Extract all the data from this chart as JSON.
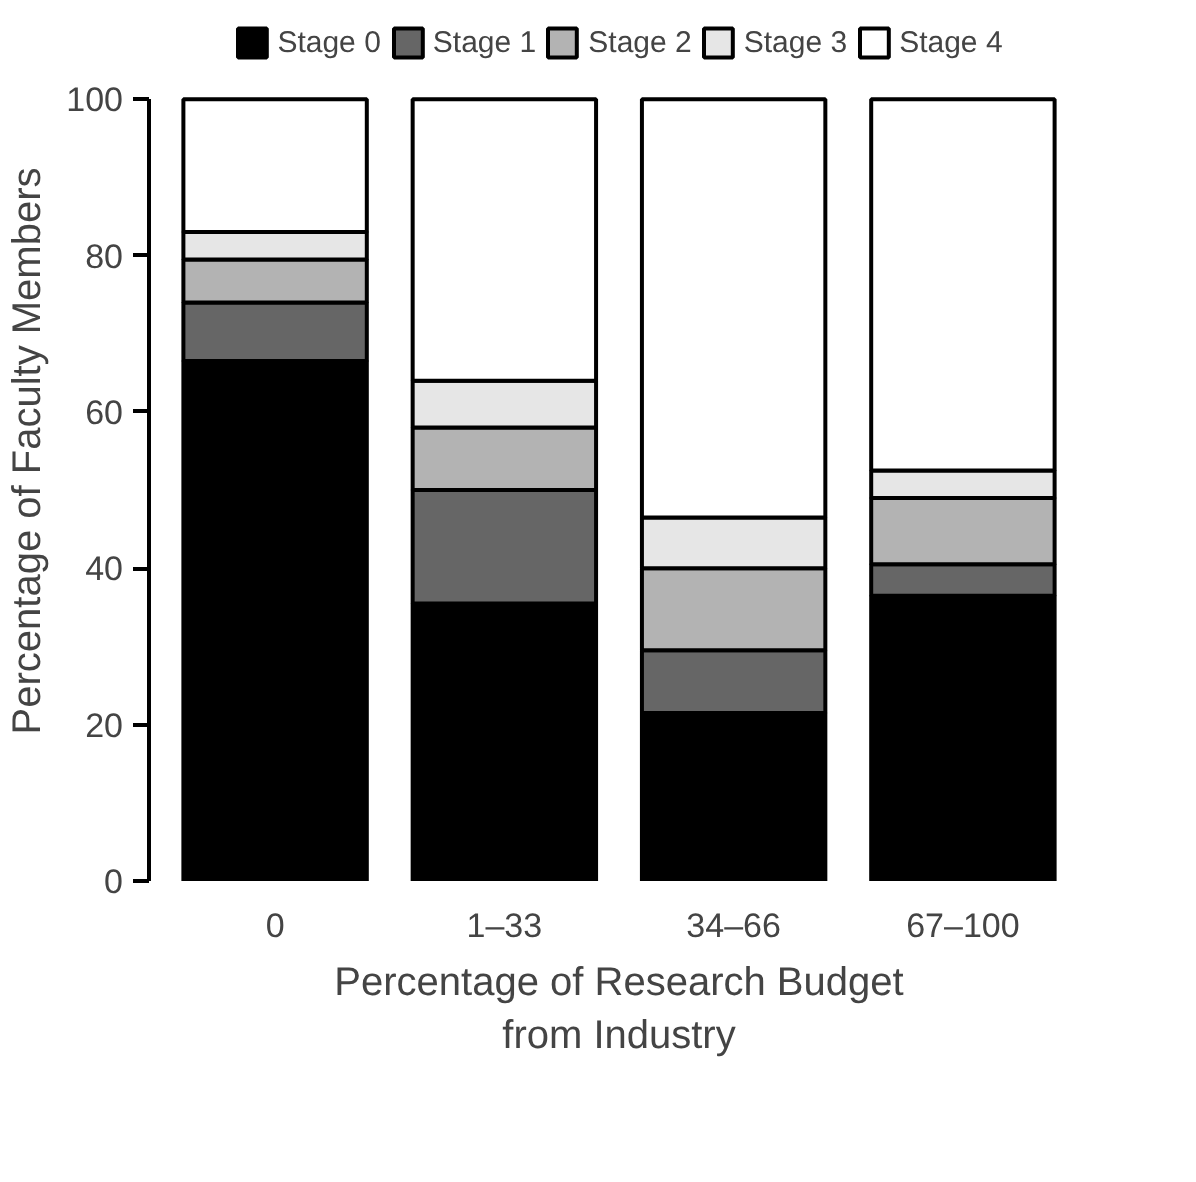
{
  "chart_data": {
    "type": "bar",
    "stacked": true,
    "xlabel": "Percentage of Research Budget\nfrom Industry",
    "ylabel": "Percentage of Faculty Members",
    "categories": [
      "0",
      "1–33",
      "34–66",
      "67–100"
    ],
    "series": [
      {
        "name": "Stage 0",
        "color": "#000000",
        "values": [
          66.5,
          35.5,
          21.5,
          36.5
        ]
      },
      {
        "name": "Stage 1",
        "color": "#666666",
        "values": [
          7.5,
          14.5,
          8,
          4
        ]
      },
      {
        "name": "Stage 2",
        "color": "#b3b3b3",
        "values": [
          5.5,
          8,
          10.5,
          8.5
        ]
      },
      {
        "name": "Stage 3",
        "color": "#e6e6e6",
        "values": [
          3.5,
          6,
          6.5,
          3.5
        ]
      },
      {
        "name": "Stage 4",
        "color": "#ffffff",
        "values": [
          17,
          36,
          53.5,
          47.5
        ]
      }
    ],
    "ylim": [
      0,
      100
    ],
    "yticks": [
      0,
      20,
      40,
      60,
      80,
      100
    ],
    "grid": false,
    "legend": "top"
  }
}
